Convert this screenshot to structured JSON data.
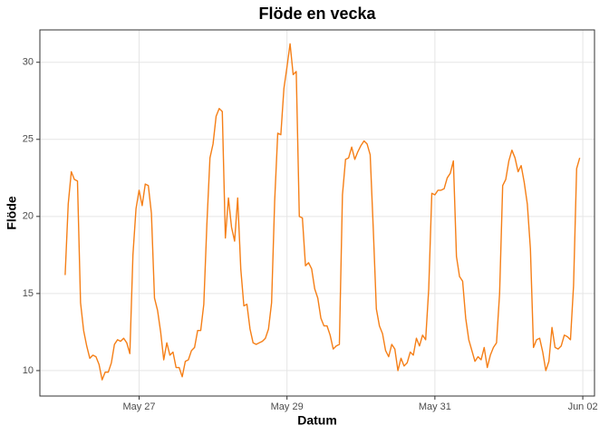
{
  "chart_data": {
    "type": "line",
    "title": "Flöde en vecka",
    "x_label": "Datum",
    "y_label": "Flöde",
    "x": [
      0,
      1,
      2,
      3,
      4,
      5,
      6,
      7,
      8,
      9,
      10,
      11,
      12,
      13,
      14,
      15,
      16,
      17,
      18,
      19,
      20,
      21,
      22,
      23,
      24,
      25,
      26,
      27,
      28,
      29,
      30,
      31,
      32,
      33,
      34,
      35,
      36,
      37,
      38,
      39,
      40,
      41,
      42,
      43,
      44,
      45,
      46,
      47,
      48,
      49,
      50,
      51,
      52,
      53,
      54,
      55,
      56,
      57,
      58,
      59,
      60,
      61,
      62,
      63,
      64,
      65,
      66,
      67,
      68,
      69,
      70,
      71,
      72,
      73,
      74,
      75,
      76,
      77,
      78,
      79,
      80,
      81,
      82,
      83,
      84,
      85,
      86,
      87,
      88,
      89,
      90,
      91,
      92,
      93,
      94,
      95,
      96,
      97,
      98,
      99,
      100,
      101,
      102,
      103,
      104,
      105,
      106,
      107,
      108,
      109,
      110,
      111,
      112,
      113,
      114,
      115,
      116,
      117,
      118,
      119,
      120,
      121,
      122,
      123,
      124,
      125,
      126,
      127,
      128,
      129,
      130,
      131,
      132,
      133,
      134,
      135,
      136,
      137,
      138,
      139,
      140,
      141,
      142,
      143,
      144,
      145,
      146,
      147,
      148,
      149,
      150,
      151,
      152,
      153,
      154,
      155,
      156,
      157,
      158,
      159,
      160,
      161,
      162,
      163,
      164,
      165,
      166,
      167
    ],
    "series": [
      {
        "name": "Flöde",
        "color": "#f57f17",
        "values": [
          16.2,
          20.8,
          22.9,
          22.4,
          22.3,
          14.4,
          12.6,
          11.6,
          10.8,
          11.0,
          10.9,
          10.4,
          9.4,
          9.9,
          9.9,
          10.5,
          11.7,
          12.0,
          11.9,
          12.1,
          11.8,
          11.1,
          17.5,
          20.5,
          21.7,
          20.7,
          22.1,
          22.0,
          20.2,
          14.7,
          13.9,
          12.5,
          10.7,
          11.8,
          11.0,
          11.2,
          10.2,
          10.2,
          9.6,
          10.6,
          10.7,
          11.3,
          11.5,
          12.6,
          12.6,
          14.3,
          19.5,
          23.8,
          24.7,
          26.5,
          27.0,
          26.8,
          18.6,
          21.2,
          19.3,
          18.4,
          21.2,
          16.6,
          14.2,
          14.3,
          12.7,
          11.8,
          11.7,
          11.8,
          11.9,
          12.1,
          12.7,
          14.4,
          21.0,
          25.4,
          25.3,
          28.3,
          29.7,
          31.2,
          29.2,
          29.4,
          20.0,
          19.9,
          16.8,
          17.0,
          16.6,
          15.3,
          14.7,
          13.4,
          12.9,
          12.9,
          12.3,
          11.4,
          11.6,
          11.7,
          21.4,
          23.7,
          23.8,
          24.5,
          23.7,
          24.2,
          24.6,
          24.9,
          24.7,
          24.0,
          19.2,
          14.0,
          12.9,
          12.4,
          11.3,
          10.9,
          11.7,
          11.4,
          10.0,
          10.8,
          10.3,
          10.5,
          11.2,
          11.0,
          12.1,
          11.6,
          12.3,
          12.0,
          15.3,
          21.5,
          21.4,
          21.7,
          21.7,
          21.8,
          22.5,
          22.8,
          23.6,
          17.4,
          16.1,
          15.8,
          13.4,
          12.0,
          11.3,
          10.6,
          10.9,
          10.7,
          11.5,
          10.2,
          11.0,
          11.5,
          11.8,
          15.0,
          22.0,
          22.4,
          23.6,
          24.3,
          23.8,
          22.9,
          23.3,
          22.2,
          20.8,
          17.9,
          11.5,
          12.0,
          12.1,
          11.2,
          10.0,
          10.6,
          12.8,
          11.5,
          11.4,
          11.6,
          12.3,
          12.2,
          12.0,
          15.5,
          23.1,
          23.8
        ]
      }
    ],
    "xlim": [
      -8.2,
      171.8
    ],
    "xticks": [
      {
        "value": 24,
        "label": "May 27"
      },
      {
        "value": 72,
        "label": "May 29"
      },
      {
        "value": 120,
        "label": "May 31"
      },
      {
        "value": 168,
        "label": "Jun 02"
      }
    ],
    "ylim": [
      8.35,
      32.1
    ],
    "yticks": [
      10,
      15,
      20,
      25,
      30
    ],
    "grid": true
  }
}
